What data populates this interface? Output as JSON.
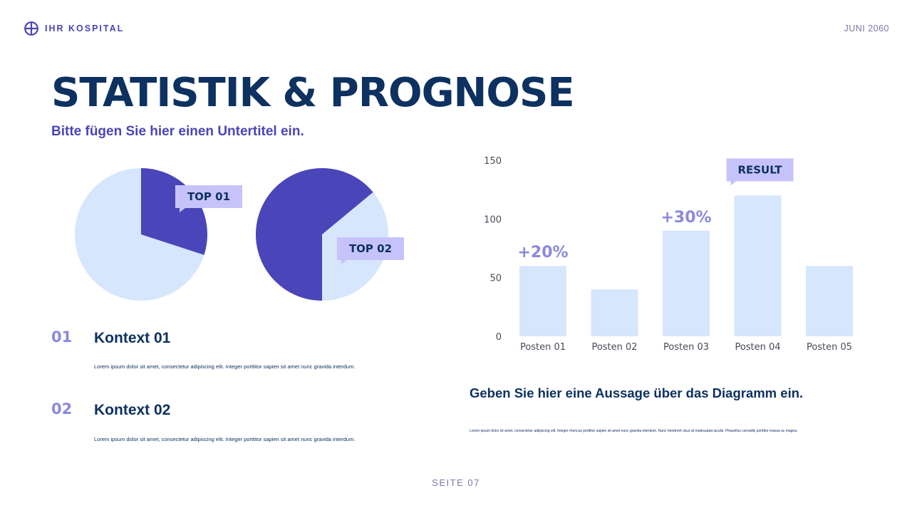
{
  "header": {
    "brand": "IHR KOSPITAL",
    "date": "JUNI 2060"
  },
  "title": "STATISTIK & PROGNOSE",
  "subtitle": "Bitte fügen Sie hier einen Untertitel ein.",
  "colors": {
    "navy": "#0d3160",
    "indigo": "#4a45b8",
    "lilac": "#8c88de",
    "pale_blue": "#d6e6fd",
    "tag_bg": "#c6c3fb"
  },
  "pies": [
    {
      "label": "TOP 01",
      "highlight_pct": 30
    },
    {
      "label": "TOP 02",
      "highlight_pct": 64
    }
  ],
  "contexts": [
    {
      "number": "01",
      "title": "Kontext 01",
      "text": "Lorem ipsum dolor sit amet, consectetur adipiscing elit. Integer porttitor sapien sit amet nunc gravida interdum."
    },
    {
      "number": "02",
      "title": "Kontext 02",
      "text": "Lorem ipsum dolor sit amet, consectetur adipiscing elit. Integer porttitor sapien sit amet nunc gravida interdum."
    }
  ],
  "chart_data": {
    "type": "bar",
    "categories": [
      "Posten 01",
      "Posten 02",
      "Posten 03",
      "Posten 04",
      "Posten 05"
    ],
    "values": [
      60,
      40,
      90,
      120,
      60
    ],
    "ylim": [
      0,
      150
    ],
    "yticks": [
      0,
      50,
      100,
      150
    ],
    "grid": false,
    "annotations": [
      {
        "category": "Posten 01",
        "text": "+20%"
      },
      {
        "category": "Posten 03",
        "text": "+30%"
      },
      {
        "category": "Posten 04",
        "text": "RESULT",
        "style": "tag"
      }
    ]
  },
  "statement": {
    "title": "Geben Sie hier eine Aussage über das Diagramm ein.",
    "text": "Lorem ipsum dolor sit amet, consectetur adipiscing elit. Integer rhoncus porttitor sapien sit amet nunc gravida interdum. Nunc hendrerit risus at malesuada iaculis. Phasellus convallis porttitor massa ac magna."
  },
  "footer": {
    "page": "SEITE 07"
  }
}
